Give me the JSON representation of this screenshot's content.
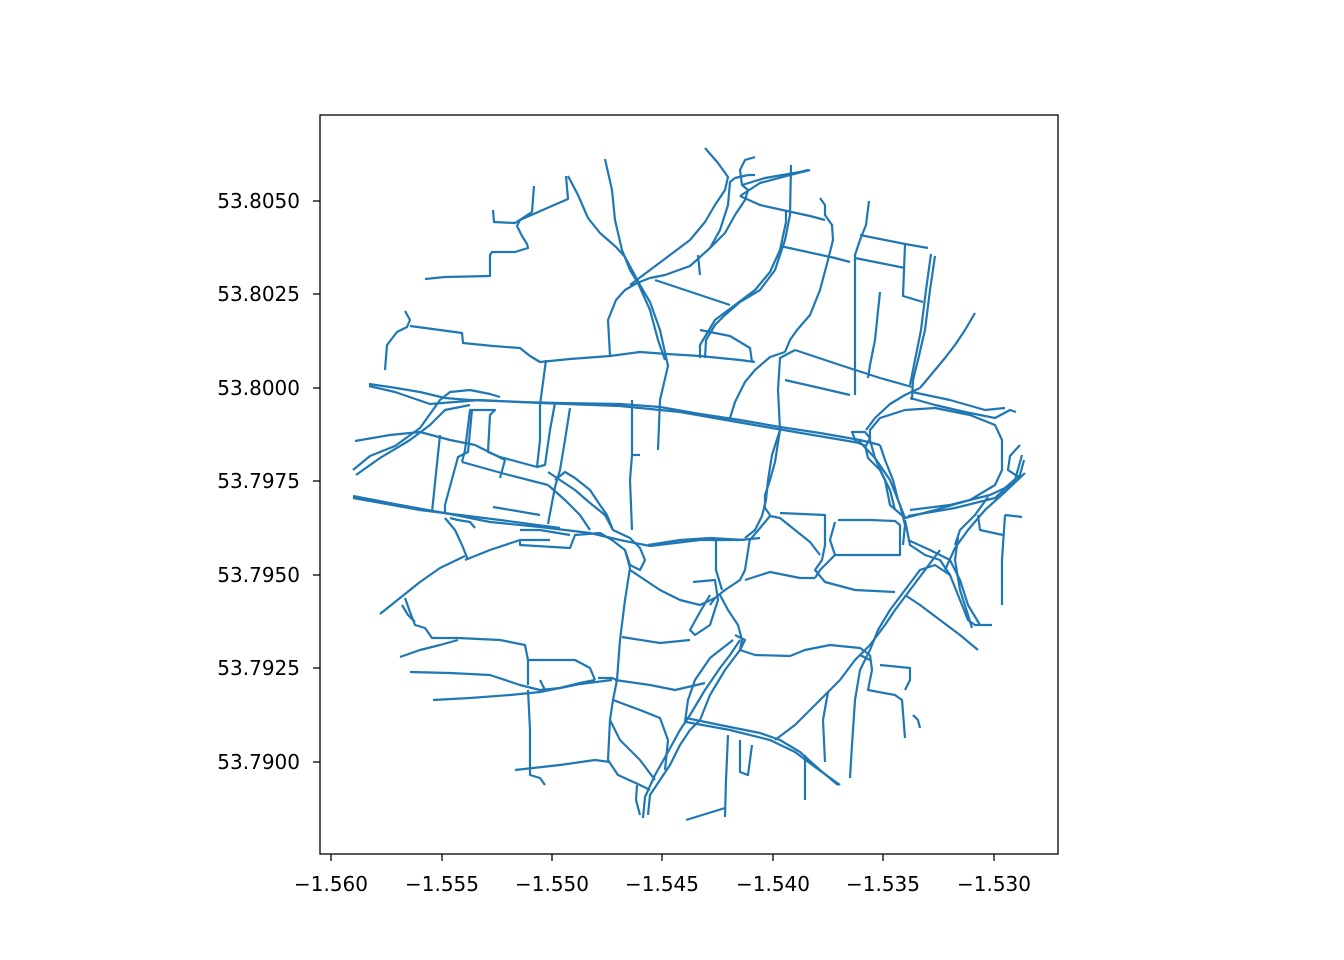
{
  "map": {
    "type": "line",
    "description_kind": "street-network",
    "line_color": "#1f77b4",
    "xlim": [
      -1.5605,
      -1.5275
    ],
    "ylim": [
      53.7882,
      53.8078
    ],
    "x_ticks": [
      -1.56,
      -1.555,
      -1.55,
      -1.545,
      -1.54,
      -1.535,
      -1.53
    ],
    "x_tick_labels": [
      "−1.560",
      "−1.555",
      "−1.550",
      "−1.545",
      "−1.540",
      "−1.535",
      "−1.530"
    ],
    "y_ticks": [
      53.79,
      53.7925,
      53.795,
      53.7975,
      53.8,
      53.8025,
      53.805
    ],
    "y_tick_labels": [
      "53.7900",
      "53.7925",
      "53.7950",
      "53.7975",
      "53.8000",
      "53.8025",
      "53.8050"
    ],
    "grid": false
  }
}
